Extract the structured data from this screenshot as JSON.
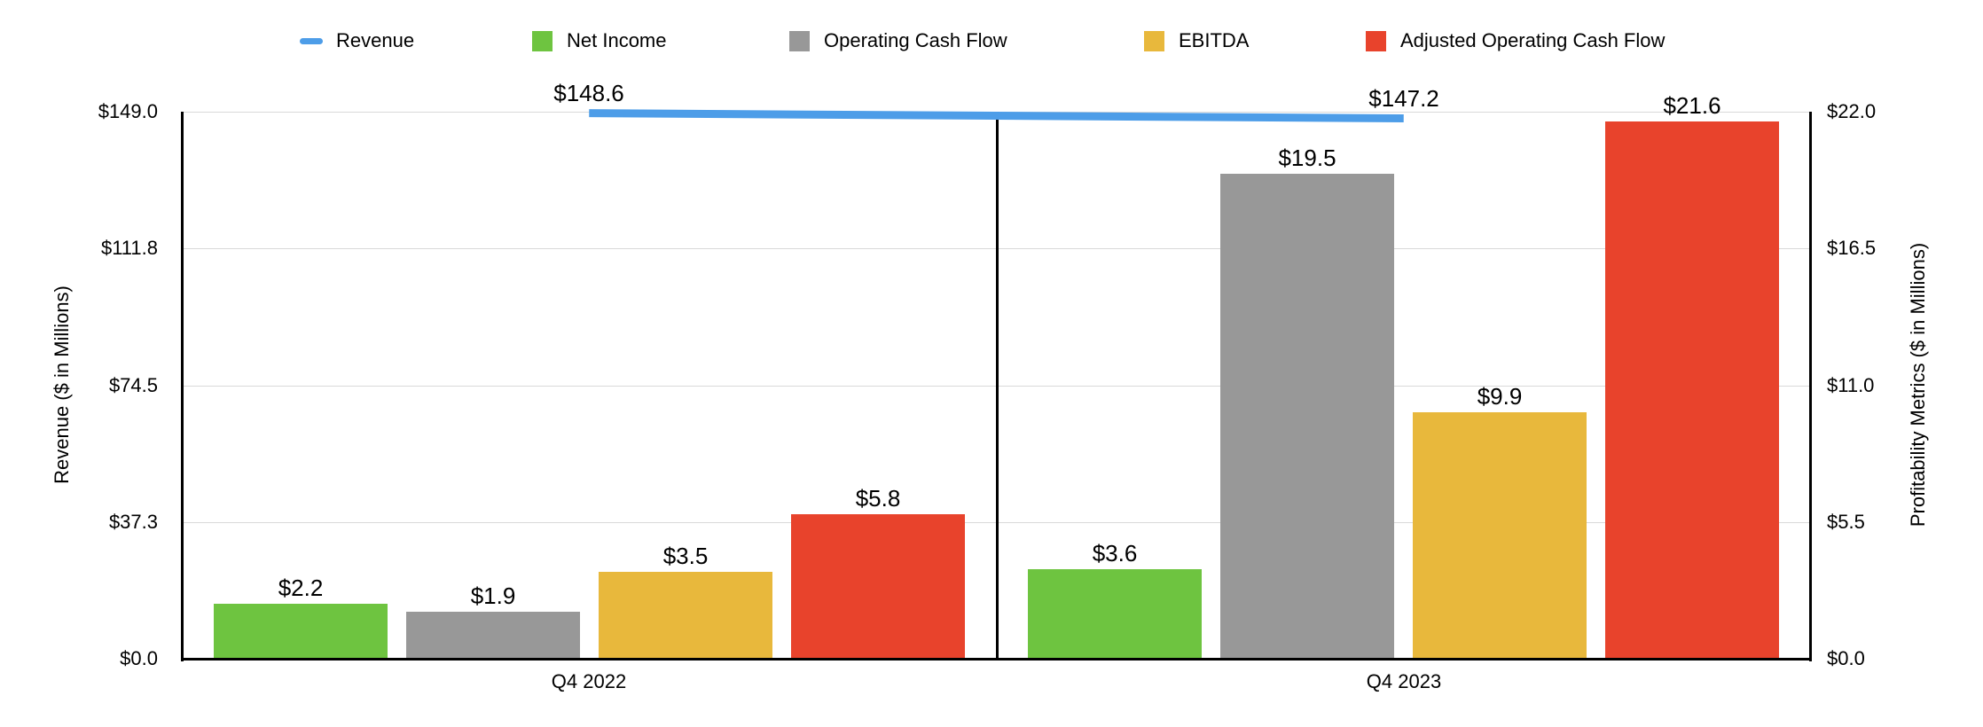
{
  "chart_data": {
    "type": "bar",
    "subtype": "grouped-bars-with-line-dual-axis",
    "categories": [
      "Q4 2022",
      "Q4 2023"
    ],
    "line_series": {
      "name": "Revenue",
      "axis": "left",
      "values": [
        148.6,
        147.2
      ],
      "labels": [
        "$148.6",
        "$147.2"
      ],
      "color": "#4d9de8"
    },
    "series": [
      {
        "name": "Net Income",
        "axis": "right",
        "values": [
          2.2,
          3.6
        ],
        "labels": [
          "$2.2",
          "$3.6"
        ],
        "color": "#6ec440"
      },
      {
        "name": "Operating Cash Flow",
        "axis": "right",
        "values": [
          1.9,
          19.5
        ],
        "labels": [
          "$1.9",
          "$19.5"
        ],
        "color": "#989898"
      },
      {
        "name": "EBITDA",
        "axis": "right",
        "values": [
          3.5,
          9.9
        ],
        "labels": [
          "$3.5",
          "$9.9"
        ],
        "color": "#e8b83c"
      },
      {
        "name": "Adjusted Operating Cash Flow",
        "axis": "right",
        "values": [
          5.8,
          21.6
        ],
        "labels": [
          "$5.8",
          "$21.6"
        ],
        "color": "#e8432c"
      }
    ],
    "left_axis": {
      "title": "Revenue ($ in Millions)",
      "tick_labels": [
        "$149.0",
        "$111.8",
        "$74.5",
        "$37.3",
        "$0.0"
      ],
      "tick_values": [
        149,
        111.75,
        74.5,
        37.25,
        0
      ],
      "range": [
        0,
        149
      ]
    },
    "right_axis": {
      "title": "Profitability Metrics ($ in Millions)",
      "tick_labels": [
        "$22.0",
        "$16.5",
        "$11.0",
        "$5.5",
        "$0.0"
      ],
      "tick_values": [
        22,
        16.5,
        11,
        5.5,
        0
      ],
      "range": [
        0,
        22
      ]
    },
    "legend": {
      "position": "top",
      "entries": [
        "Revenue",
        "Net Income",
        "Operating Cash Flow",
        "EBITDA",
        "Adjusted Operating Cash Flow"
      ]
    },
    "grid": true,
    "colors": {
      "grid": "#d9d9d9",
      "axis": "#000000",
      "divider": "#000000",
      "background": "#ffffff",
      "text": "#000000"
    }
  }
}
